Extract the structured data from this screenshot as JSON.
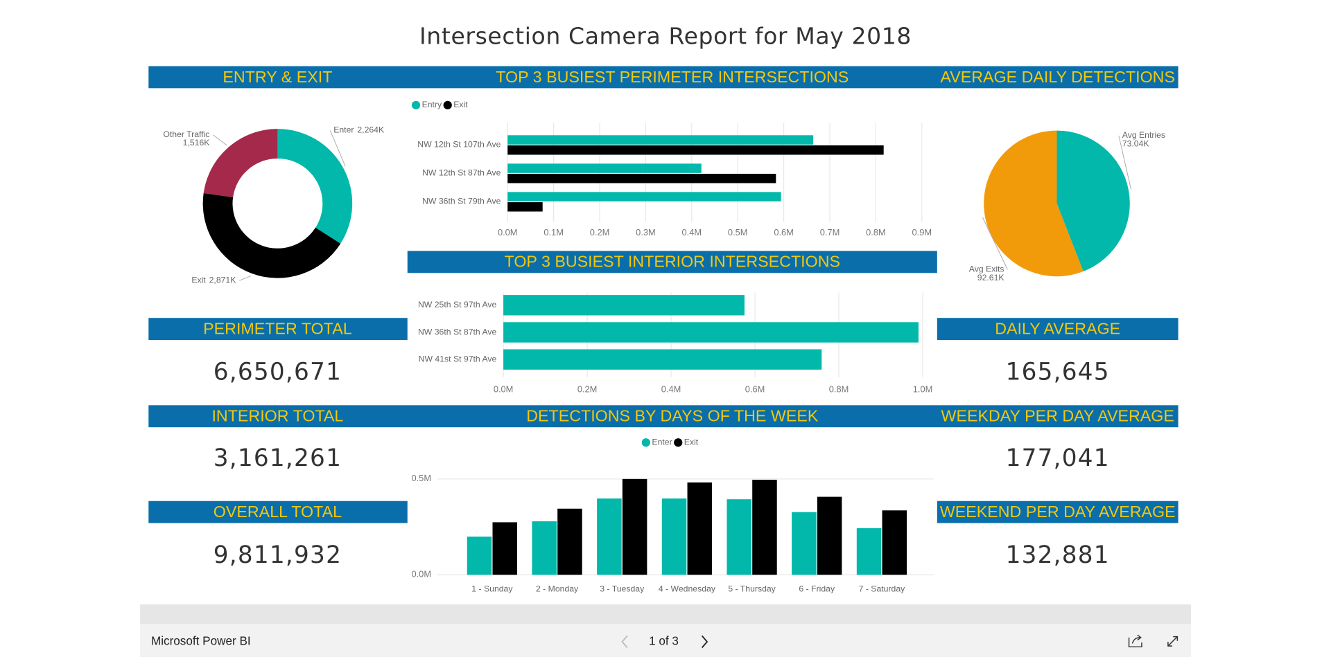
{
  "title": "Intersection Camera Report for May 2018",
  "chart_data": [
    {
      "type": "donut",
      "title": "ENTRY & EXIT",
      "categories": [
        "Enter",
        "Exit",
        "Other Traffic"
      ],
      "values": [
        2264,
        2871,
        1516
      ],
      "value_labels": [
        "2,264K",
        "2,871K",
        "1,516K"
      ],
      "colors": [
        "#01b8aa",
        "#000000",
        "#a4294b"
      ]
    },
    {
      "type": "bar",
      "orientation": "horizontal",
      "title": "TOP 3 BUSIEST PERIMETER INTERSECTIONS",
      "categories": [
        "NW 12th St 107th Ave",
        "NW 12th St 87th Ave",
        "NW 36th St 79th Ave"
      ],
      "series": [
        {
          "name": "Entry",
          "color": "#01b8aa",
          "values": [
            0.664,
            0.421,
            0.594
          ]
        },
        {
          "name": "Exit",
          "color": "#000000",
          "values": [
            0.817,
            0.583,
            0.076
          ]
        }
      ],
      "xlim": [
        0,
        0.9
      ],
      "xticks": [
        {
          "value": 0,
          "label": "0.0M"
        },
        {
          "value": 0.1,
          "label": "0.1M"
        },
        {
          "value": 0.2,
          "label": "0.2M"
        },
        {
          "value": 0.3,
          "label": "0.3M"
        },
        {
          "value": 0.4,
          "label": "0.4M"
        },
        {
          "value": 0.5,
          "label": "0.5M"
        },
        {
          "value": 0.6,
          "label": "0.6M"
        },
        {
          "value": 0.7,
          "label": "0.7M"
        },
        {
          "value": 0.8,
          "label": "0.8M"
        },
        {
          "value": 0.9,
          "label": "0.9M"
        }
      ],
      "grid": true,
      "legend": "top-left"
    },
    {
      "type": "bar",
      "orientation": "horizontal",
      "title": "TOP 3 BUSIEST INTERIOR INTERSECTIONS",
      "categories": [
        "NW 25th St 97th Ave",
        "NW 36th St 87th Ave",
        "NW 41st St 97th Ave"
      ],
      "series": [
        {
          "color": "#01b8aa",
          "values": [
            0.575,
            0.99,
            0.759
          ]
        }
      ],
      "xlim": [
        0,
        1.0
      ],
      "xticks": [
        {
          "value": 0,
          "label": "0.0M"
        },
        {
          "value": 0.2,
          "label": "0.2M"
        },
        {
          "value": 0.4,
          "label": "0.4M"
        },
        {
          "value": 0.6,
          "label": "0.6M"
        },
        {
          "value": 0.8,
          "label": "0.8M"
        },
        {
          "value": 1.0,
          "label": "1.0M"
        }
      ],
      "grid": true
    },
    {
      "type": "bar",
      "orientation": "vertical",
      "title": "DETECTIONS BY DAYS OF THE WEEK",
      "categories": [
        "1 - Sunday",
        "2 - Monday",
        "3 - Tuesday",
        "4 - Wednesday",
        "5 - Thursday",
        "6 - Friday",
        "7 - Saturday"
      ],
      "series": [
        {
          "name": "Enter",
          "color": "#01b8aa",
          "values": [
            0.199,
            0.279,
            0.398,
            0.398,
            0.394,
            0.327,
            0.243
          ]
        },
        {
          "name": "Exit",
          "color": "#000000",
          "values": [
            0.274,
            0.345,
            0.5,
            0.482,
            0.496,
            0.407,
            0.336
          ]
        }
      ],
      "ylim": [
        0,
        0.5
      ],
      "yticks": [
        {
          "value": 0,
          "label": "0.0M"
        },
        {
          "value": 0.5,
          "label": "0.5M"
        }
      ],
      "grid": true,
      "legend": "top-center"
    },
    {
      "type": "pie",
      "title": "AVERAGE DAILY DETECTIONS",
      "categories": [
        "Avg Entries",
        "Avg Exits"
      ],
      "values": [
        73.04,
        92.61
      ],
      "value_labels": [
        "73.04K",
        "92.61K"
      ],
      "colors": [
        "#01b8aa",
        "#f29b0a"
      ]
    }
  ],
  "cards": [
    {
      "title": "PERIMETER TOTAL",
      "value": "6,650,671"
    },
    {
      "title": "INTERIOR TOTAL",
      "value": "3,161,261"
    },
    {
      "title": "OVERALL TOTAL",
      "value": "9,811,932"
    },
    {
      "title": "DAILY AVERAGE",
      "value": "165,645"
    },
    {
      "title": "WEEKDAY PER DAY AVERAGE",
      "value": "177,041"
    },
    {
      "title": "WEEKEND PER DAY AVERAGE",
      "value": "132,881"
    }
  ],
  "footer": {
    "brand": "Microsoft Power BI",
    "page": "1 of 3"
  }
}
